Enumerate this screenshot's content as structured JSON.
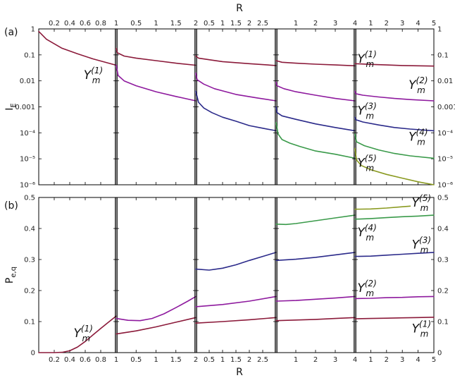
{
  "figure": {
    "label_top": "R",
    "label_bottom": "R",
    "panel_a_label": "(a)",
    "panel_b_label": "(b)"
  },
  "chart_data": [
    {
      "type": "line",
      "panel": "(a)",
      "ylabel_base": "I",
      "ylabel_sub": "E",
      "yscale": "log",
      "ylim": [
        1e-06,
        1
      ],
      "yticks_left": [
        "1",
        "0.1",
        "0.01",
        "0.001",
        "10⁻⁴",
        "10⁻⁵",
        "10⁻⁶"
      ],
      "yticks_right": [
        "1",
        "0.1",
        "0.01",
        "0.001",
        "10⁻⁴",
        "10⁻⁵",
        "10⁻⁶"
      ],
      "grid": false,
      "subplots": [
        {
          "xlim": [
            0,
            1
          ],
          "xtick_values": [
            0.2,
            0.4,
            0.6,
            0.8,
            1
          ],
          "xtick_labels": [
            "0.2",
            "0.4",
            "0.6",
            "0.8",
            "1"
          ],
          "series": [
            {
              "color": "#8b1a3a",
              "x": [
                0,
                0.1,
                0.3,
                0.5,
                0.7,
                1
              ],
              "y": [
                0.8,
                0.4,
                0.18,
                0.11,
                0.07,
                0.04
              ]
            }
          ],
          "labels": [
            {
              "base": "Y",
              "sub": "m",
              "sup": "(1)",
              "x": 0.58,
              "y": 0.012
            }
          ]
        },
        {
          "xlim": [
            0,
            2
          ],
          "xtick_values": [
            0.5,
            1,
            1.5,
            2
          ],
          "xtick_labels": [
            "0.5",
            "1",
            "1.5",
            "2"
          ],
          "series": [
            {
              "color": "#8b1a3a",
              "x": [
                0,
                0.03,
                0.2,
                0.5,
                1,
                1.5,
                2
              ],
              "y": [
                0.18,
                0.12,
                0.09,
                0.075,
                0.06,
                0.048,
                0.04
              ]
            },
            {
              "color": "#8e1a9e",
              "x": [
                0,
                0.05,
                0.2,
                0.5,
                1,
                1.5,
                2
              ],
              "y": [
                0.04,
                0.016,
                0.01,
                0.0065,
                0.0038,
                0.0025,
                0.0017
              ]
            }
          ],
          "labels": []
        },
        {
          "xlim": [
            0,
            3
          ],
          "xtick_values": [
            0.5,
            1,
            1.5,
            2,
            2.5
          ],
          "xtick_labels": [
            "0.5",
            "1",
            "1.5",
            "2",
            "2.5"
          ],
          "series": [
            {
              "color": "#8b1a3a",
              "x": [
                0,
                0.1,
                0.5,
                1,
                2,
                3
              ],
              "y": [
                0.09,
                0.075,
                0.065,
                0.055,
                0.046,
                0.039
              ]
            },
            {
              "color": "#8e1a9e",
              "x": [
                0,
                0.05,
                0.3,
                0.7,
                1.5,
                2.3,
                3
              ],
              "y": [
                0.02,
                0.011,
                0.0075,
                0.005,
                0.003,
                0.0022,
                0.0017
              ]
            },
            {
              "color": "#2b2a8a",
              "x": [
                0,
                0.1,
                0.3,
                0.6,
                1,
                1.5,
                2,
                2.5,
                3
              ],
              "y": [
                0.004,
                0.0015,
                0.0009,
                0.0006,
                0.0004,
                0.00028,
                0.00019,
                0.00015,
                0.00012
              ]
            }
          ],
          "labels": []
        },
        {
          "xlim": [
            0,
            4
          ],
          "xtick_values": [
            1,
            2,
            3,
            4
          ],
          "xtick_labels": [
            "1",
            "2",
            "3",
            "4"
          ],
          "series": [
            {
              "color": "#8b1a3a",
              "x": [
                0,
                0.3,
                1,
                2,
                3,
                4
              ],
              "y": [
                0.06,
                0.052,
                0.048,
                0.044,
                0.041,
                0.038
              ]
            },
            {
              "color": "#8e1a9e",
              "x": [
                0,
                0.05,
                0.4,
                1,
                2,
                3,
                4
              ],
              "y": [
                0.009,
                0.0065,
                0.005,
                0.0038,
                0.0028,
                0.0021,
                0.0017
              ]
            },
            {
              "color": "#2b2a8a",
              "x": [
                0,
                0.05,
                0.3,
                1,
                2,
                3,
                4
              ],
              "y": [
                0.001,
                0.0006,
                0.00045,
                0.00033,
                0.00022,
                0.00016,
                0.00012
              ]
            },
            {
              "color": "#3a9a4a",
              "x": [
                0,
                0.1,
                0.3,
                0.7,
                1.2,
                2,
                3,
                4
              ],
              "y": [
                0.00025,
                9e-05,
                5.5e-05,
                4e-05,
                3e-05,
                2e-05,
                1.5e-05,
                1.05e-05
              ]
            }
          ],
          "labels": []
        },
        {
          "xlim": [
            0,
            5
          ],
          "xtick_values": [
            1,
            2,
            3,
            4,
            5
          ],
          "xtick_labels": [
            "1",
            "2",
            "3",
            "4",
            "5"
          ],
          "series": [
            {
              "color": "#8b1a3a",
              "x": [
                0,
                1,
                2,
                3,
                4,
                5
              ],
              "y": [
                0.046,
                0.043,
                0.041,
                0.039,
                0.038,
                0.037
              ]
            },
            {
              "color": "#8e1a9e",
              "x": [
                0,
                0.05,
                0.5,
                1.5,
                2.5,
                3.5,
                5
              ],
              "y": [
                0.004,
                0.0032,
                0.0028,
                0.0024,
                0.0021,
                0.0019,
                0.0017
              ]
            },
            {
              "color": "#2b2a8a",
              "x": [
                0,
                0.05,
                0.5,
                1.5,
                2.5,
                3.5,
                5
              ],
              "y": [
                0.0004,
                0.00032,
                0.00026,
                0.0002,
                0.00016,
                0.00014,
                0.00012
              ]
            },
            {
              "color": "#3a9a4a",
              "x": [
                0,
                0.1,
                0.6,
                1.5,
                2.5,
                3.5,
                5
              ],
              "y": [
                9e-05,
                4.5e-05,
                3.2e-05,
                2.2e-05,
                1.6e-05,
                1.3e-05,
                1.05e-05
              ]
            },
            {
              "color": "#8a9a20",
              "x": [
                0,
                0.1,
                0.4,
                1,
                2,
                3,
                4,
                5
              ],
              "y": [
                2.5e-05,
                9e-06,
                5.5e-06,
                3.8e-06,
                2.5e-06,
                1.8e-06,
                1.3e-06,
                1e-06
              ]
            }
          ],
          "labels": [
            {
              "base": "Y",
              "sub": "m",
              "sup": "(1)",
              "x": 0.15,
              "y": 0.05
            },
            {
              "base": "Y",
              "sub": "m",
              "sup": "(2)",
              "x": 3.4,
              "y": 0.005
            },
            {
              "base": "Y",
              "sub": "m",
              "sup": "(3)",
              "x": 0.15,
              "y": 0.0005
            },
            {
              "base": "Y",
              "sub": "m",
              "sup": "(4)",
              "x": 3.4,
              "y": 5e-05
            },
            {
              "base": "Y",
              "sub": "m",
              "sup": "(5)",
              "x": 0.15,
              "y": 5e-06
            }
          ]
        }
      ]
    },
    {
      "type": "line",
      "panel": "(b)",
      "ylabel_base": "P",
      "ylabel_sub": "e,q",
      "yscale": "linear",
      "ylim": [
        0,
        0.5
      ],
      "yticks_left": [
        "0",
        "0.1",
        "0.2",
        "0.3",
        "0.4",
        "0.5"
      ],
      "yticks_right": [
        "0",
        "0.1",
        "0.2",
        "0.3",
        "0.4",
        "0.5"
      ],
      "grid": false,
      "subplots": [
        {
          "xlim": [
            0,
            1
          ],
          "xtick_values": [
            0.2,
            0.4,
            0.6,
            0.8,
            1
          ],
          "xtick_labels": [
            "0.2",
            "0.4",
            "0.6",
            "0.8",
            "1"
          ],
          "series": [
            {
              "color": "#8b1a3a",
              "x": [
                0,
                0.2,
                0.3,
                0.4,
                0.5,
                0.6,
                0.7,
                0.8,
                0.9,
                1
              ],
              "y": [
                0,
                0,
                0.001,
                0.006,
                0.018,
                0.036,
                0.057,
                0.078,
                0.098,
                0.118
              ]
            }
          ],
          "labels": [
            {
              "base": "Y",
              "sub": "m",
              "sup": "(1)",
              "x": 0.45,
              "y": 0.05
            }
          ]
        },
        {
          "xlim": [
            0,
            2
          ],
          "xtick_values": [
            0.5,
            1,
            1.5,
            2
          ],
          "xtick_labels": [
            "0.5",
            "1",
            "1.5",
            "2"
          ],
          "series": [
            {
              "color": "#8b1a3a",
              "x": [
                0,
                0.5,
                1,
                1.5,
                2
              ],
              "y": [
                0.06,
                0.07,
                0.083,
                0.098,
                0.113
              ]
            },
            {
              "color": "#8e1a9e",
              "x": [
                0,
                0.3,
                0.6,
                0.9,
                1.2,
                1.5,
                1.8,
                2
              ],
              "y": [
                0.11,
                0.104,
                0.103,
                0.11,
                0.125,
                0.145,
                0.166,
                0.181
              ]
            }
          ],
          "labels": []
        },
        {
          "xlim": [
            0,
            3
          ],
          "xtick_values": [
            0.5,
            1,
            1.5,
            2,
            2.5
          ],
          "xtick_labels": [
            "0.5",
            "1",
            "1.5",
            "2",
            "2.5"
          ],
          "series": [
            {
              "color": "#8b1a3a",
              "x": [
                0,
                1,
                2,
                3
              ],
              "y": [
                0.095,
                0.1,
                0.106,
                0.113
              ]
            },
            {
              "color": "#8e1a9e",
              "x": [
                0,
                1,
                2,
                3
              ],
              "y": [
                0.148,
                0.155,
                0.166,
                0.181
              ]
            },
            {
              "color": "#2b2a8a",
              "x": [
                0,
                0.5,
                1,
                1.5,
                2,
                2.5,
                3
              ],
              "y": [
                0.269,
                0.266,
                0.272,
                0.283,
                0.297,
                0.31,
                0.323
              ]
            }
          ],
          "labels": []
        },
        {
          "xlim": [
            0,
            4
          ],
          "xtick_values": [
            1,
            2,
            3,
            4
          ],
          "xtick_labels": [
            "1",
            "2",
            "3",
            "4"
          ],
          "series": [
            {
              "color": "#8b1a3a",
              "x": [
                0,
                1,
                2,
                3,
                4
              ],
              "y": [
                0.103,
                0.105,
                0.107,
                0.11,
                0.113
              ]
            },
            {
              "color": "#8e1a9e",
              "x": [
                0,
                1,
                2,
                3,
                4
              ],
              "y": [
                0.166,
                0.168,
                0.172,
                0.176,
                0.181
              ]
            },
            {
              "color": "#2b2a8a",
              "x": [
                0,
                1,
                2,
                3,
                4
              ],
              "y": [
                0.297,
                0.301,
                0.307,
                0.315,
                0.323
              ]
            },
            {
              "color": "#3a9a4a",
              "x": [
                0,
                0.5,
                1,
                2,
                3,
                4
              ],
              "y": [
                0.414,
                0.413,
                0.416,
                0.425,
                0.434,
                0.443
              ]
            }
          ],
          "labels": []
        },
        {
          "xlim": [
            0,
            5
          ],
          "xtick_values": [
            1,
            2,
            3,
            4,
            5
          ],
          "xtick_labels": [
            "1",
            "2",
            "3",
            "4",
            "5"
          ],
          "series": [
            {
              "color": "#8b1a3a",
              "x": [
                0,
                1,
                2,
                3,
                4,
                5
              ],
              "y": [
                0.109,
                0.11,
                0.111,
                0.112,
                0.113,
                0.114
              ]
            },
            {
              "color": "#8e1a9e",
              "x": [
                0,
                1,
                2,
                3,
                4,
                5
              ],
              "y": [
                0.174,
                0.175,
                0.177,
                0.178,
                0.18,
                0.181
              ]
            },
            {
              "color": "#2b2a8a",
              "x": [
                0,
                1,
                2,
                3,
                4,
                5
              ],
              "y": [
                0.31,
                0.311,
                0.314,
                0.317,
                0.32,
                0.323
              ]
            },
            {
              "color": "#3a9a4a",
              "x": [
                0,
                1,
                2,
                3,
                4,
                5
              ],
              "y": [
                0.43,
                0.432,
                0.435,
                0.438,
                0.44,
                0.443
              ]
            },
            {
              "color": "#8a9a20",
              "x": [
                0,
                1,
                2,
                3,
                3.5
              ],
              "y": [
                0.462,
                0.463,
                0.466,
                0.47,
                0.472
              ]
            }
          ],
          "labels": [
            {
              "base": "Y",
              "sub": "m",
              "sup": "(5)",
              "x": 3.6,
              "y": 0.47
            },
            {
              "base": "Y",
              "sub": "m",
              "sup": "(4)",
              "x": 0.15,
              "y": 0.375
            },
            {
              "base": "Y",
              "sub": "m",
              "sup": "(3)",
              "x": 3.6,
              "y": 0.335
            },
            {
              "base": "Y",
              "sub": "m",
              "sup": "(2)",
              "x": 0.15,
              "y": 0.195
            },
            {
              "base": "Y",
              "sub": "m",
              "sup": "(1)",
              "x": 3.6,
              "y": 0.065
            }
          ]
        }
      ]
    }
  ]
}
